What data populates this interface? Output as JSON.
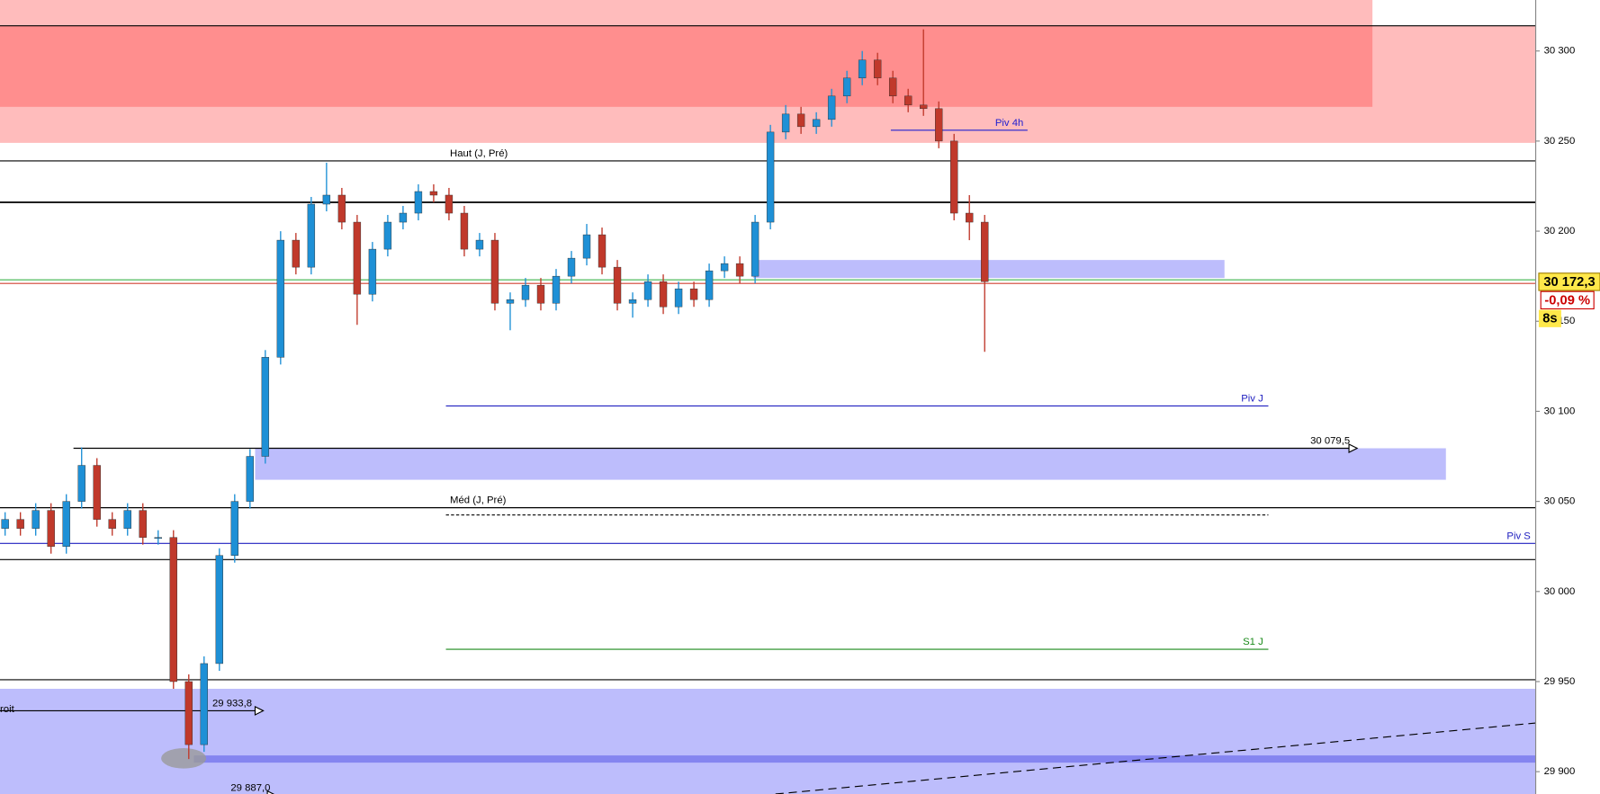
{
  "chart_data": {
    "type": "candlestick",
    "ylim": [
      29887.6,
      30328.3
    ],
    "yticks": [
      {
        "value": 29900,
        "label": "29 900"
      },
      {
        "value": 29950,
        "label": "29 950"
      },
      {
        "value": 30000,
        "label": "30 000"
      },
      {
        "value": 30050,
        "label": "30 050"
      },
      {
        "value": 30100,
        "label": "30 100"
      },
      {
        "value": 30150,
        "label": "30 150"
      },
      {
        "value": 30200,
        "label": "30 200"
      },
      {
        "value": 30250,
        "label": "30 250"
      },
      {
        "value": 30300,
        "label": "30 300"
      }
    ],
    "up_color": "#1e90d6",
    "down_color": "#c0392b",
    "candles": {
      "open": [
        30035,
        30040,
        30035,
        30045,
        30025,
        30050,
        30070,
        30040,
        30035,
        30045,
        30030,
        30030,
        29950,
        29915,
        29960,
        30020,
        30050,
        30075,
        30130,
        30195,
        30180,
        30215,
        30220,
        30205,
        30165,
        30190,
        30205,
        30210,
        30222,
        30220,
        30210,
        30190,
        30195,
        30160,
        30162,
        30170,
        30160,
        30175,
        30185,
        30198,
        30180,
        30160,
        30162,
        30172,
        30158,
        30168,
        30162,
        30178,
        30182,
        30175,
        30205,
        30255,
        30265,
        30258,
        30262,
        30275,
        30285,
        30295,
        30285,
        30275,
        30270,
        30268,
        30250,
        30210,
        30205
      ],
      "high": [
        30044,
        30044,
        30049,
        30049,
        30054,
        30080,
        30074,
        30044,
        30049,
        30049,
        30034,
        30034,
        29954,
        29964,
        30024,
        30054,
        30079,
        30134,
        30200,
        30199,
        30219,
        30238,
        30224,
        30209,
        30194,
        30209,
        30214,
        30226,
        30226,
        30224,
        30214,
        30199,
        30199,
        30166,
        30174,
        30174,
        30179,
        30189,
        30204,
        30202,
        30184,
        30166,
        30176,
        30176,
        30172,
        30172,
        30182,
        30186,
        30186,
        30209,
        30259,
        30270,
        30269,
        30266,
        30279,
        30289,
        30300,
        30299,
        30289,
        30279,
        30312,
        30272,
        30254,
        30220,
        30209
      ],
      "low": [
        30031,
        30031,
        30031,
        30021,
        30021,
        30046,
        30036,
        30031,
        30031,
        30026,
        30026,
        29946,
        29907,
        29911,
        29956,
        30016,
        30046,
        30071,
        30126,
        30176,
        30176,
        30211,
        30201,
        30148,
        30161,
        30186,
        30201,
        30206,
        30216,
        30206,
        30186,
        30186,
        30156,
        30145,
        30158,
        30156,
        30156,
        30171,
        30181,
        30176,
        30156,
        30152,
        30158,
        30154,
        30154,
        30158,
        30158,
        30174,
        30171,
        30171,
        30201,
        30251,
        30254,
        30254,
        30258,
        30271,
        30281,
        30281,
        30271,
        30266,
        30264,
        30246,
        30206,
        30195,
        30133
      ],
      "close": [
        30040,
        30035,
        30045,
        30025,
        30050,
        30070,
        30040,
        30035,
        30045,
        30030,
        30030,
        29950,
        29915,
        29960,
        30020,
        30050,
        30075,
        30130,
        30195,
        30180,
        30215,
        30220,
        30205,
        30165,
        30190,
        30205,
        30210,
        30222,
        30220,
        30210,
        30190,
        30195,
        30160,
        30162,
        30170,
        30160,
        30175,
        30185,
        30198,
        30180,
        30160,
        30162,
        30172,
        30158,
        30168,
        30162,
        30178,
        30182,
        30175,
        30205,
        30255,
        30265,
        30258,
        30262,
        30275,
        30285,
        30295,
        30285,
        30275,
        30270,
        30268,
        30250,
        30210,
        30205,
        30172
      ]
    },
    "zones": [
      {
        "from": 30249,
        "to": 30314,
        "color": "#ffbcbc"
      },
      {
        "from": 30314,
        "to": 30328.3,
        "color": "#ffbcbc"
      },
      {
        "from": 30269,
        "to": 30314,
        "color": "#ff8e8e"
      },
      {
        "from": 30174,
        "to": 30184,
        "color": "#bdbdfc"
      },
      {
        "from": 30062,
        "to": 30079.5,
        "color": "#bdbdfc"
      },
      {
        "from": 29887.6,
        "to": 29946,
        "color": "#bdbdfc"
      },
      {
        "from": 29905,
        "to": 29909,
        "color": "#8585f0"
      }
    ],
    "levels": [
      {
        "value": 30314,
        "color": "#000000"
      },
      {
        "value": 30239,
        "color": "#000000",
        "label": "Haut (J, Pré)"
      },
      {
        "value": 30216,
        "color": "#000000"
      },
      {
        "value": 30173,
        "color": "#3cb44b"
      },
      {
        "value": 30171,
        "color": "#d04030"
      },
      {
        "value": 30256,
        "color": "#2020d0",
        "label": "Piv 4h"
      },
      {
        "value": 30103,
        "color": "#2020c0",
        "label": "Piv J"
      },
      {
        "value": 30079.5,
        "color": "#000000",
        "label": "30 079,5"
      },
      {
        "value": 30046.5,
        "color": "#000000",
        "label": "Méd (J, Pré)"
      },
      {
        "value": 30042.5,
        "color": "#000000",
        "dashed": true
      },
      {
        "value": 30026.7,
        "color": "#2020c0",
        "label": "Piv S"
      },
      {
        "value": 30017.7,
        "color": "#000000"
      },
      {
        "value": 29967.9,
        "color": "#1a8a1a",
        "label": "S1 J"
      },
      {
        "value": 29951,
        "color": "#000000"
      },
      {
        "value": 29933.8,
        "color": "#000000",
        "label": "29 933,8"
      },
      {
        "value": 29887,
        "color": "#000000",
        "label": "29 887,0"
      }
    ],
    "trendline": {
      "from": 29887.6,
      "to": 29927
    },
    "left_label": "roit",
    "price_label": "30 172,3",
    "change_label": "-0,09 %",
    "timer_label": "8s"
  }
}
